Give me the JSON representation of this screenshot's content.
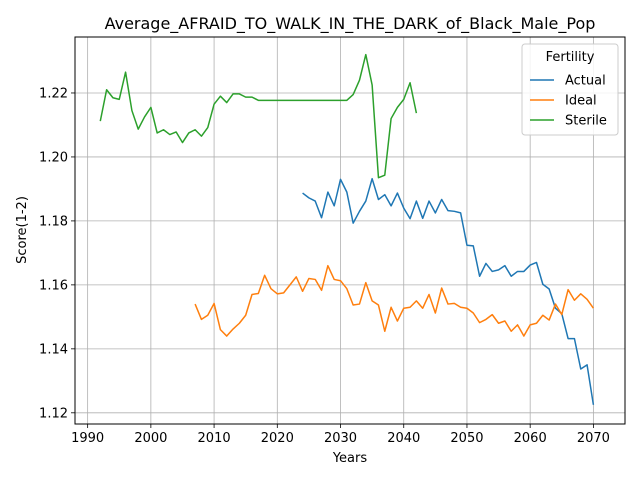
{
  "chart_data": {
    "type": "line",
    "title": "Average_AFRAID_TO_WALK_IN_THE_DARK_of_Black_Male_Pop",
    "xlabel": "Years",
    "ylabel": "Score(1-2)",
    "xlim": [
      1988,
      2075
    ],
    "ylim": [
      1.1165,
      1.2375
    ],
    "xticks": [
      1990,
      2000,
      2010,
      2020,
      2030,
      2040,
      2050,
      2060,
      2070
    ],
    "xtick_labels": [
      "1990",
      "2000",
      "2010",
      "2020",
      "2030",
      "2040",
      "2050",
      "2060",
      "2070"
    ],
    "yticks": [
      1.12,
      1.14,
      1.16,
      1.18,
      1.2,
      1.22
    ],
    "ytick_labels": [
      "1.12",
      "1.14",
      "1.16",
      "1.18",
      "1.20",
      "1.22"
    ],
    "grid": true,
    "legend": {
      "title": "Fertility",
      "placement": "top-right"
    },
    "series": [
      {
        "name": "Actual",
        "color": "#1f77b4",
        "x": [
          2024,
          2025,
          2026,
          2027,
          2028,
          2029,
          2030,
          2031,
          2032,
          2033,
          2034,
          2035,
          2036,
          2037,
          2038,
          2039,
          2040,
          2041,
          2042,
          2043,
          2044,
          2045,
          2046,
          2047,
          2048,
          2049,
          2050,
          2051,
          2052,
          2053,
          2054,
          2055,
          2056,
          2057,
          2058,
          2059,
          2060,
          2061,
          2062,
          2063,
          2064,
          2065,
          2066,
          2067,
          2068,
          2069,
          2070
        ],
        "y": [
          1.1887,
          1.1872,
          1.1862,
          1.181,
          1.189,
          1.1847,
          1.193,
          1.189,
          1.1793,
          1.183,
          1.1862,
          1.1932,
          1.1867,
          1.1882,
          1.1847,
          1.1887,
          1.184,
          1.1807,
          1.1862,
          1.1808,
          1.1862,
          1.1825,
          1.1867,
          1.1832,
          1.183,
          1.1825,
          1.1724,
          1.1722,
          1.1627,
          1.1667,
          1.1642,
          1.1647,
          1.166,
          1.1627,
          1.1642,
          1.1642,
          1.1662,
          1.167,
          1.1602,
          1.1587,
          1.1527,
          1.151,
          1.1432,
          1.1432,
          1.1337,
          1.135,
          1.1225
        ]
      },
      {
        "name": "Ideal",
        "color": "#ff7f0e",
        "x": [
          2007,
          2008,
          2009,
          2010,
          2011,
          2012,
          2013,
          2014,
          2015,
          2016,
          2017,
          2018,
          2019,
          2020,
          2021,
          2022,
          2023,
          2024,
          2025,
          2026,
          2027,
          2028,
          2029,
          2030,
          2031,
          2032,
          2033,
          2034,
          2035,
          2036,
          2037,
          2038,
          2039,
          2040,
          2041,
          2042,
          2043,
          2044,
          2045,
          2046,
          2047,
          2048,
          2049,
          2050,
          2051,
          2052,
          2053,
          2054,
          2055,
          2056,
          2057,
          2058,
          2059,
          2060,
          2061,
          2062,
          2063,
          2064,
          2065,
          2066,
          2067,
          2068,
          2069,
          2070
        ],
        "y": [
          1.154,
          1.1492,
          1.1505,
          1.1542,
          1.146,
          1.144,
          1.1462,
          1.148,
          1.1505,
          1.157,
          1.1573,
          1.163,
          1.1588,
          1.1572,
          1.1575,
          1.16,
          1.1625,
          1.158,
          1.162,
          1.1617,
          1.1583,
          1.166,
          1.1617,
          1.1613,
          1.1588,
          1.1537,
          1.154,
          1.1607,
          1.155,
          1.1537,
          1.1455,
          1.153,
          1.1487,
          1.1527,
          1.153,
          1.155,
          1.1527,
          1.157,
          1.1512,
          1.159,
          1.154,
          1.1542,
          1.153,
          1.1527,
          1.1512,
          1.1482,
          1.1492,
          1.1507,
          1.148,
          1.1487,
          1.1455,
          1.1475,
          1.144,
          1.1475,
          1.148,
          1.1505,
          1.149,
          1.154,
          1.1507,
          1.1585,
          1.1552,
          1.1572,
          1.1555,
          1.1527
        ]
      },
      {
        "name": "Sterile",
        "color": "#2ca02c",
        "x": [
          1992,
          1993,
          1994,
          1995,
          1996,
          1997,
          1998,
          1999,
          2000,
          2001,
          2002,
          2003,
          2004,
          2005,
          2006,
          2007,
          2008,
          2009,
          2010,
          2011,
          2012,
          2013,
          2014,
          2015,
          2016,
          2017,
          2018,
          2019,
          2020,
          2021,
          2022,
          2023,
          2024,
          2025,
          2026,
          2027,
          2028,
          2029,
          2030,
          2031,
          2032,
          2033,
          2034,
          2035,
          2036,
          2037,
          2038,
          2039,
          2040,
          2041,
          2042
        ],
        "y": [
          1.2112,
          1.221,
          1.2185,
          1.218,
          1.2265,
          1.2145,
          1.2087,
          1.2125,
          1.2155,
          1.2075,
          1.2085,
          1.207,
          1.2078,
          1.2045,
          1.2075,
          1.2085,
          1.2065,
          1.2092,
          1.2165,
          1.219,
          1.217,
          1.2197,
          1.2197,
          1.2187,
          1.2187,
          1.2177,
          1.2177,
          1.2177,
          1.2177,
          1.2177,
          1.2177,
          1.2177,
          1.2177,
          1.2177,
          1.2177,
          1.2177,
          1.2177,
          1.2177,
          1.2177,
          1.2177,
          1.2195,
          1.224,
          1.232,
          1.2225,
          1.1935,
          1.1943,
          1.212,
          1.2155,
          1.218,
          1.2232,
          1.2137
        ]
      }
    ]
  }
}
